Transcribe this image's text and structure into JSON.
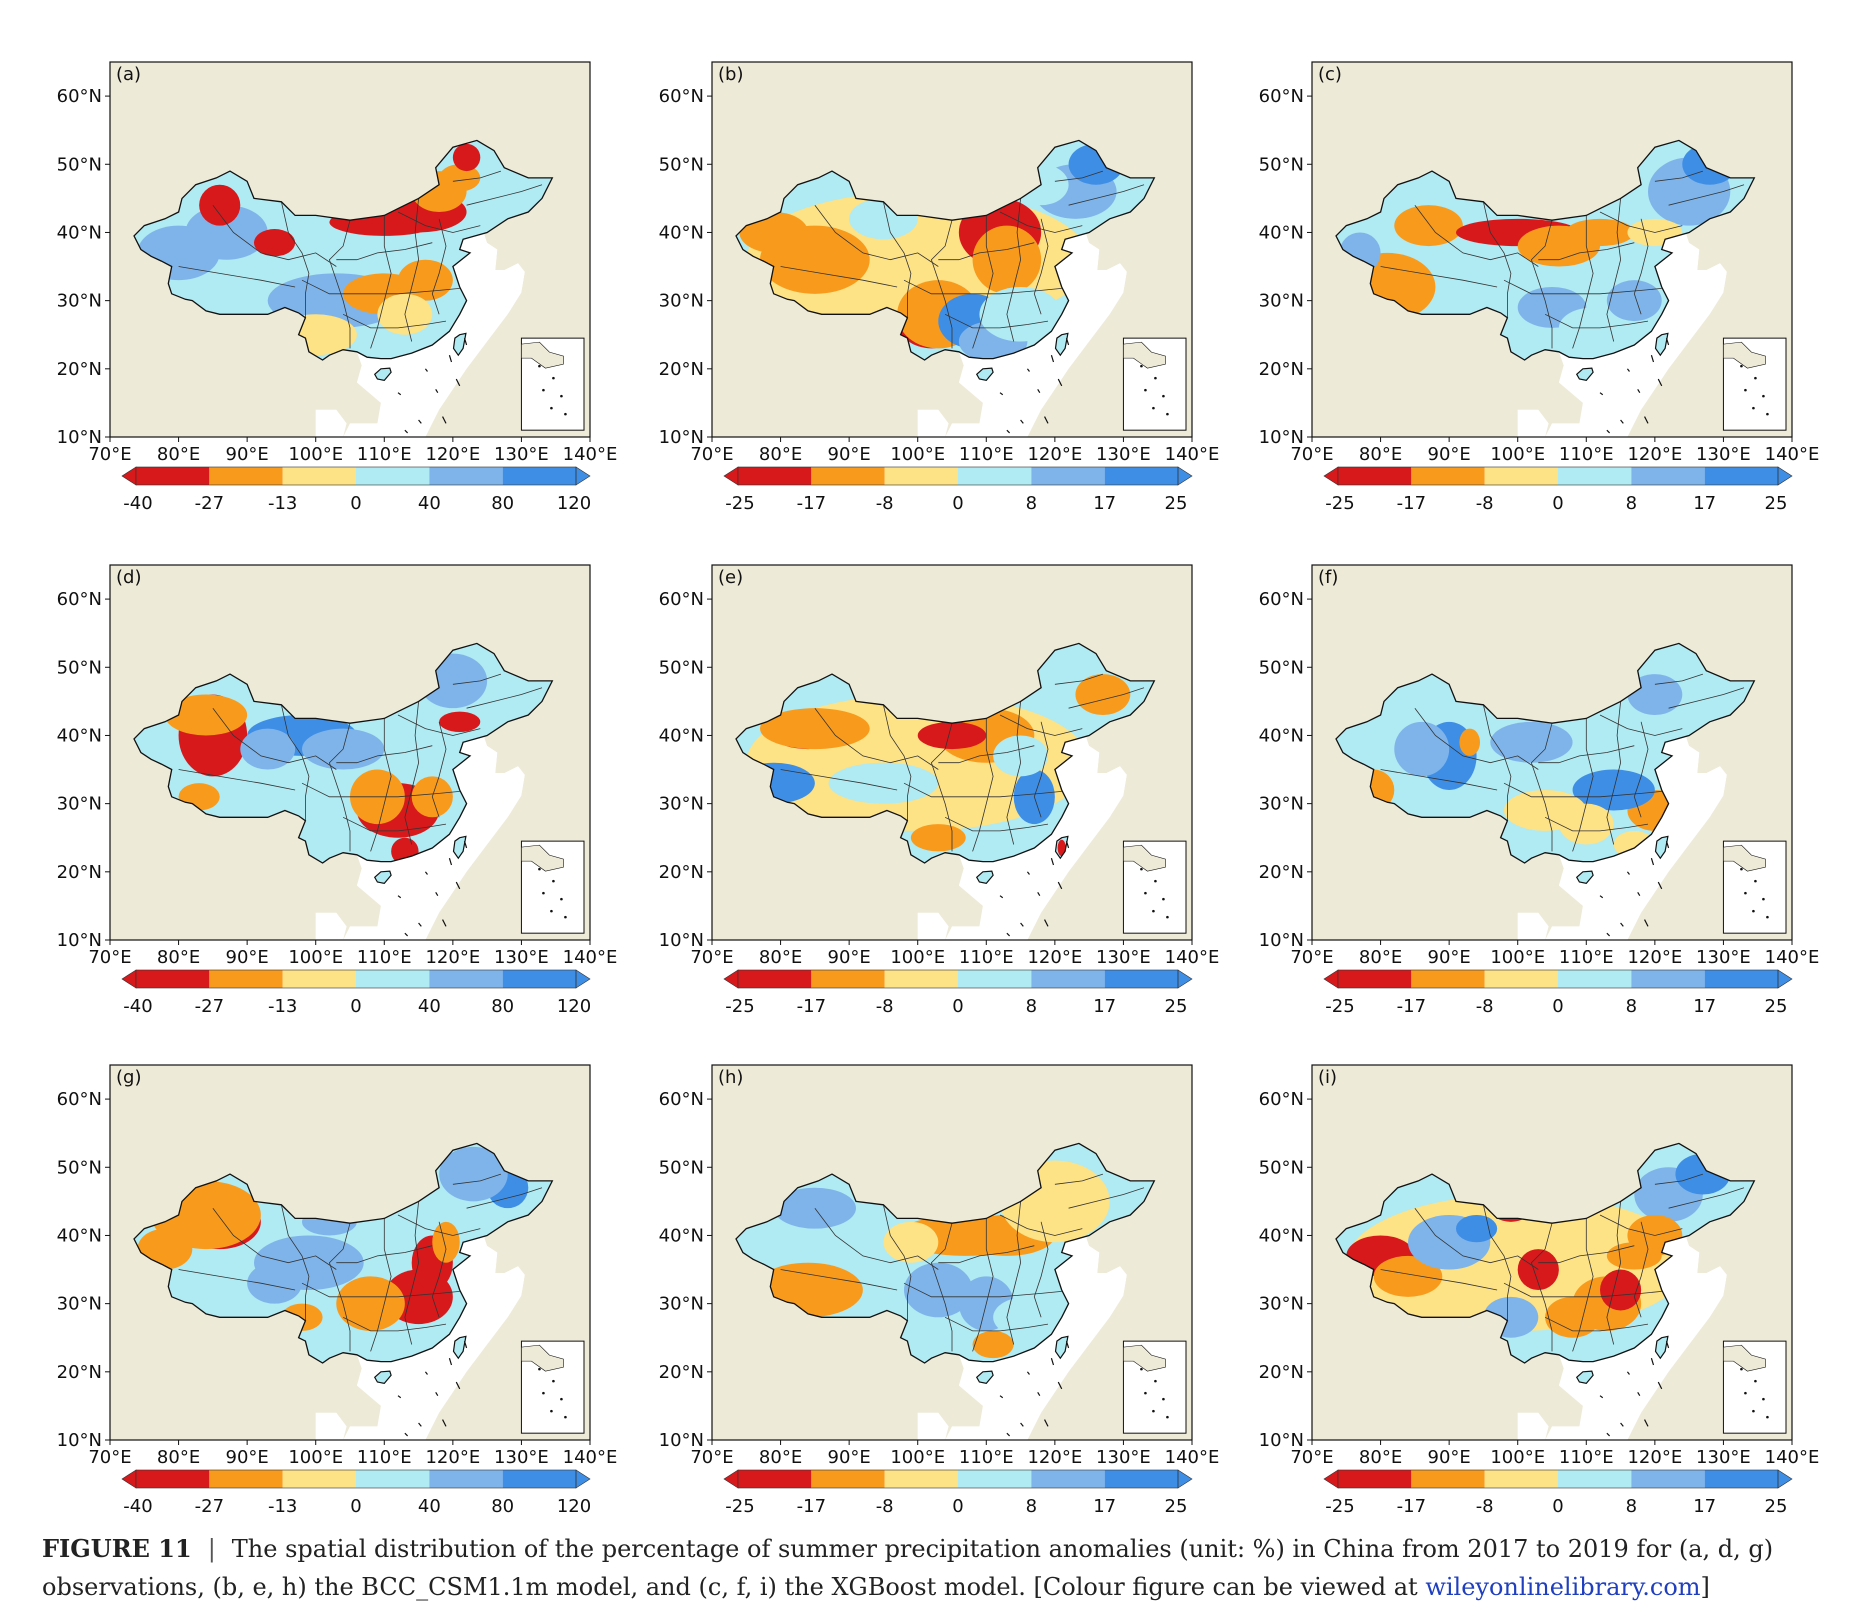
{
  "panels": [
    {
      "label": "(a)",
      "scale": "obs"
    },
    {
      "label": "(b)",
      "scale": "model"
    },
    {
      "label": "(c)",
      "scale": "model"
    },
    {
      "label": "(d)",
      "scale": "obs"
    },
    {
      "label": "(e)",
      "scale": "model"
    },
    {
      "label": "(f)",
      "scale": "model"
    },
    {
      "label": "(g)",
      "scale": "obs"
    },
    {
      "label": "(h)",
      "scale": "model"
    },
    {
      "label": "(i)",
      "scale": "model"
    }
  ],
  "axes": {
    "lat_ticks": [
      "60°N",
      "50°N",
      "40°N",
      "30°N",
      "20°N",
      "10°N"
    ],
    "lon_ticks": [
      "70°E",
      "80°E",
      "90°E",
      "100°E",
      "110°E",
      "120°E",
      "130°E",
      "140°E"
    ],
    "lon_range": [
      70,
      140
    ],
    "lat_range": [
      10,
      65
    ]
  },
  "colorbars": {
    "obs": {
      "ticks": [
        "-40",
        "-27",
        "-13",
        "0",
        "40",
        "80",
        "120"
      ]
    },
    "model": {
      "ticks": [
        "-25",
        "-17",
        "-8",
        "0",
        "8",
        "17",
        "25"
      ]
    }
  },
  "colors": {
    "bins": [
      "#d7191c",
      "#f89a1c",
      "#fde286",
      "#b0eaf2",
      "#7fb4ea",
      "#3f8ee6"
    ],
    "land": "#eeead8",
    "ocean": "#ffffff"
  },
  "caption": {
    "figure_number": "FIGURE 11",
    "separator": "|",
    "text": "The spatial distribution of the percentage of summer precipitation anomalies (unit: %) in China from 2017 to 2019 for (a, d, g) observations, (b, e, h) the BCC_CSM1.1m model, and (c, f, i) the XGBoost model. [Colour figure can be viewed at ",
    "link": "wileyonlinelibrary.com",
    "end": "]"
  }
}
